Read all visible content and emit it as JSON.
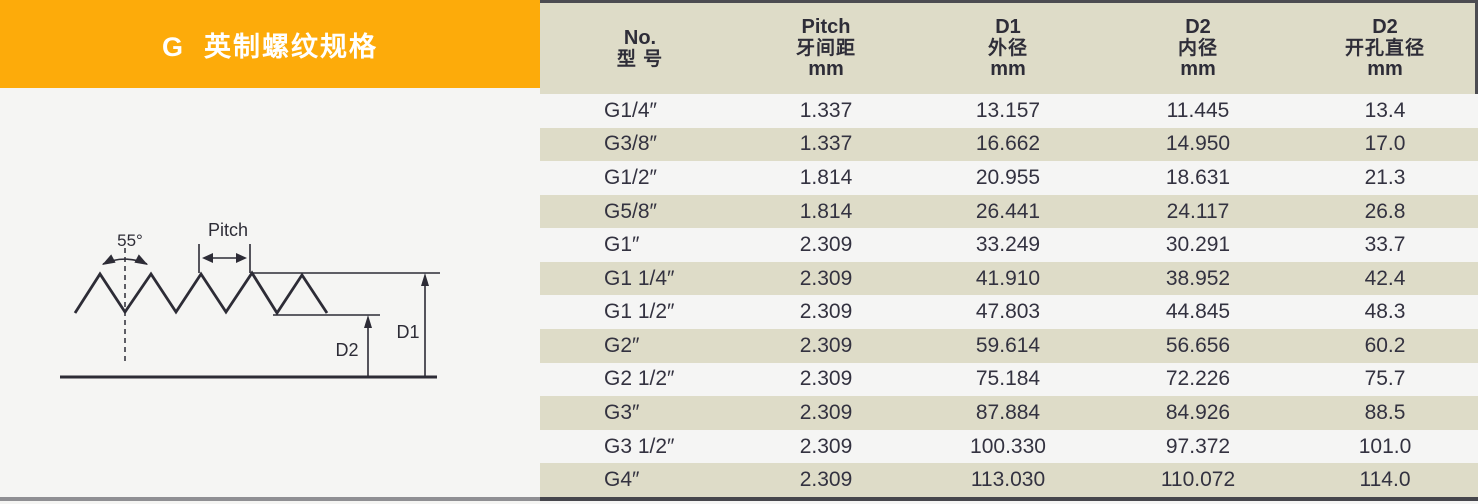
{
  "banner": {
    "title": "G  英制螺纹规格"
  },
  "diagram": {
    "angle_label": "55°",
    "pitch_label": "Pitch",
    "d1_label": "D1",
    "d2_label": "D2"
  },
  "table": {
    "columns": [
      {
        "line1": "No.",
        "line2": "型 号",
        "line3": ""
      },
      {
        "line1": "Pitch",
        "line2": "牙间距",
        "line3": "mm"
      },
      {
        "line1": "D1",
        "line2": "外径",
        "line3": "mm"
      },
      {
        "line1": "D2",
        "line2": "内径",
        "line3": "mm"
      },
      {
        "line1": "D2",
        "line2": "开孔直径",
        "line3": "mm"
      }
    ],
    "rows": [
      [
        "G1/4″",
        "1.337",
        "13.157",
        "11.445",
        "13.4"
      ],
      [
        "G3/8″",
        "1.337",
        "16.662",
        "14.950",
        "17.0"
      ],
      [
        "G1/2″",
        "1.814",
        "20.955",
        "18.631",
        "21.3"
      ],
      [
        "G5/8″",
        "1.814",
        "26.441",
        "24.117",
        "26.8"
      ],
      [
        "G1″",
        "2.309",
        "33.249",
        "30.291",
        "33.7"
      ],
      [
        "G1 1/4″",
        "2.309",
        "41.910",
        "38.952",
        "42.4"
      ],
      [
        "G1 1/2″",
        "2.309",
        "47.803",
        "44.845",
        "48.3"
      ],
      [
        "G2″",
        "2.309",
        "59.614",
        "56.656",
        "60.2"
      ],
      [
        "G2 1/2″",
        "2.309",
        "75.184",
        "72.226",
        "75.7"
      ],
      [
        "G3″",
        "2.309",
        "87.884",
        "84.926",
        "88.5"
      ],
      [
        "G3 1/2″",
        "2.309",
        "100.330",
        "97.372",
        "101.0"
      ],
      [
        "G4″",
        "2.309",
        "113.030",
        "110.072",
        "114.0"
      ]
    ]
  },
  "colors": {
    "banner_orange": "#FDAB0A",
    "row_beige": "#DEDCC8",
    "row_light": "#F5F5F4",
    "line_dark": "#4C4C52",
    "text_dark": "#333240"
  }
}
